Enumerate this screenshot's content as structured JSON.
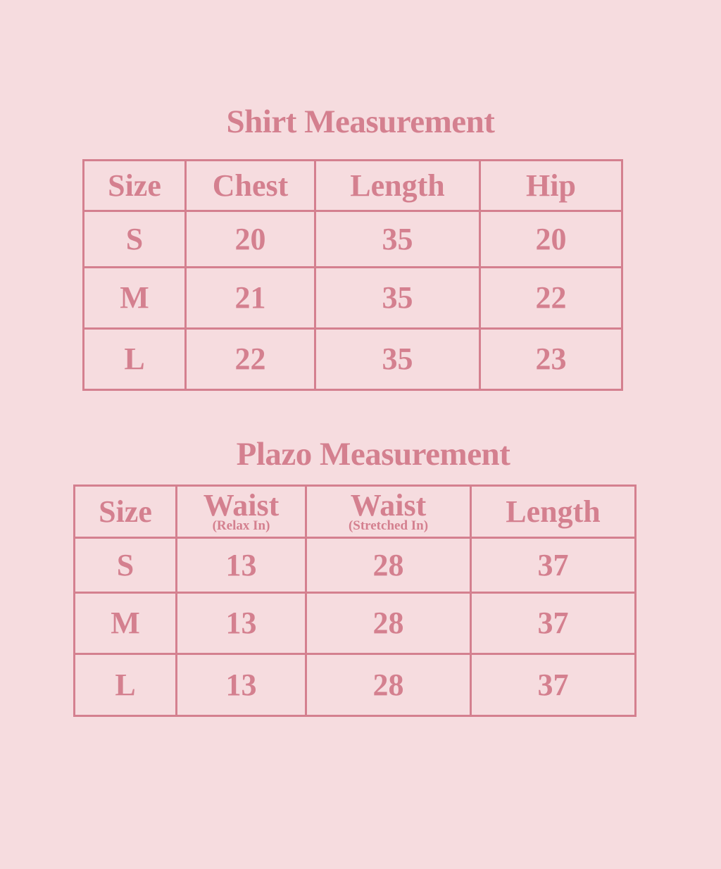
{
  "colors": {
    "background": "#f6dcdf",
    "accent": "#d4808f"
  },
  "shirt": {
    "title": "Shirt Measurement",
    "headers": [
      "Size",
      "Chest",
      "Length",
      "Hip"
    ],
    "rows": [
      [
        "S",
        "20",
        "35",
        "20"
      ],
      [
        "M",
        "21",
        "35",
        "22"
      ],
      [
        "L",
        "22",
        "35",
        "23"
      ]
    ]
  },
  "plazo": {
    "title": "Plazo Measurement",
    "headers": [
      {
        "main": "Size",
        "sub": ""
      },
      {
        "main": "Waist",
        "sub": "(Relax In)"
      },
      {
        "main": "Waist",
        "sub": "(Stretched In)"
      },
      {
        "main": "Length",
        "sub": ""
      }
    ],
    "rows": [
      [
        "S",
        "13",
        "28",
        "37"
      ],
      [
        "M",
        "13",
        "28",
        "37"
      ],
      [
        "L",
        "13",
        "28",
        "37"
      ]
    ]
  }
}
